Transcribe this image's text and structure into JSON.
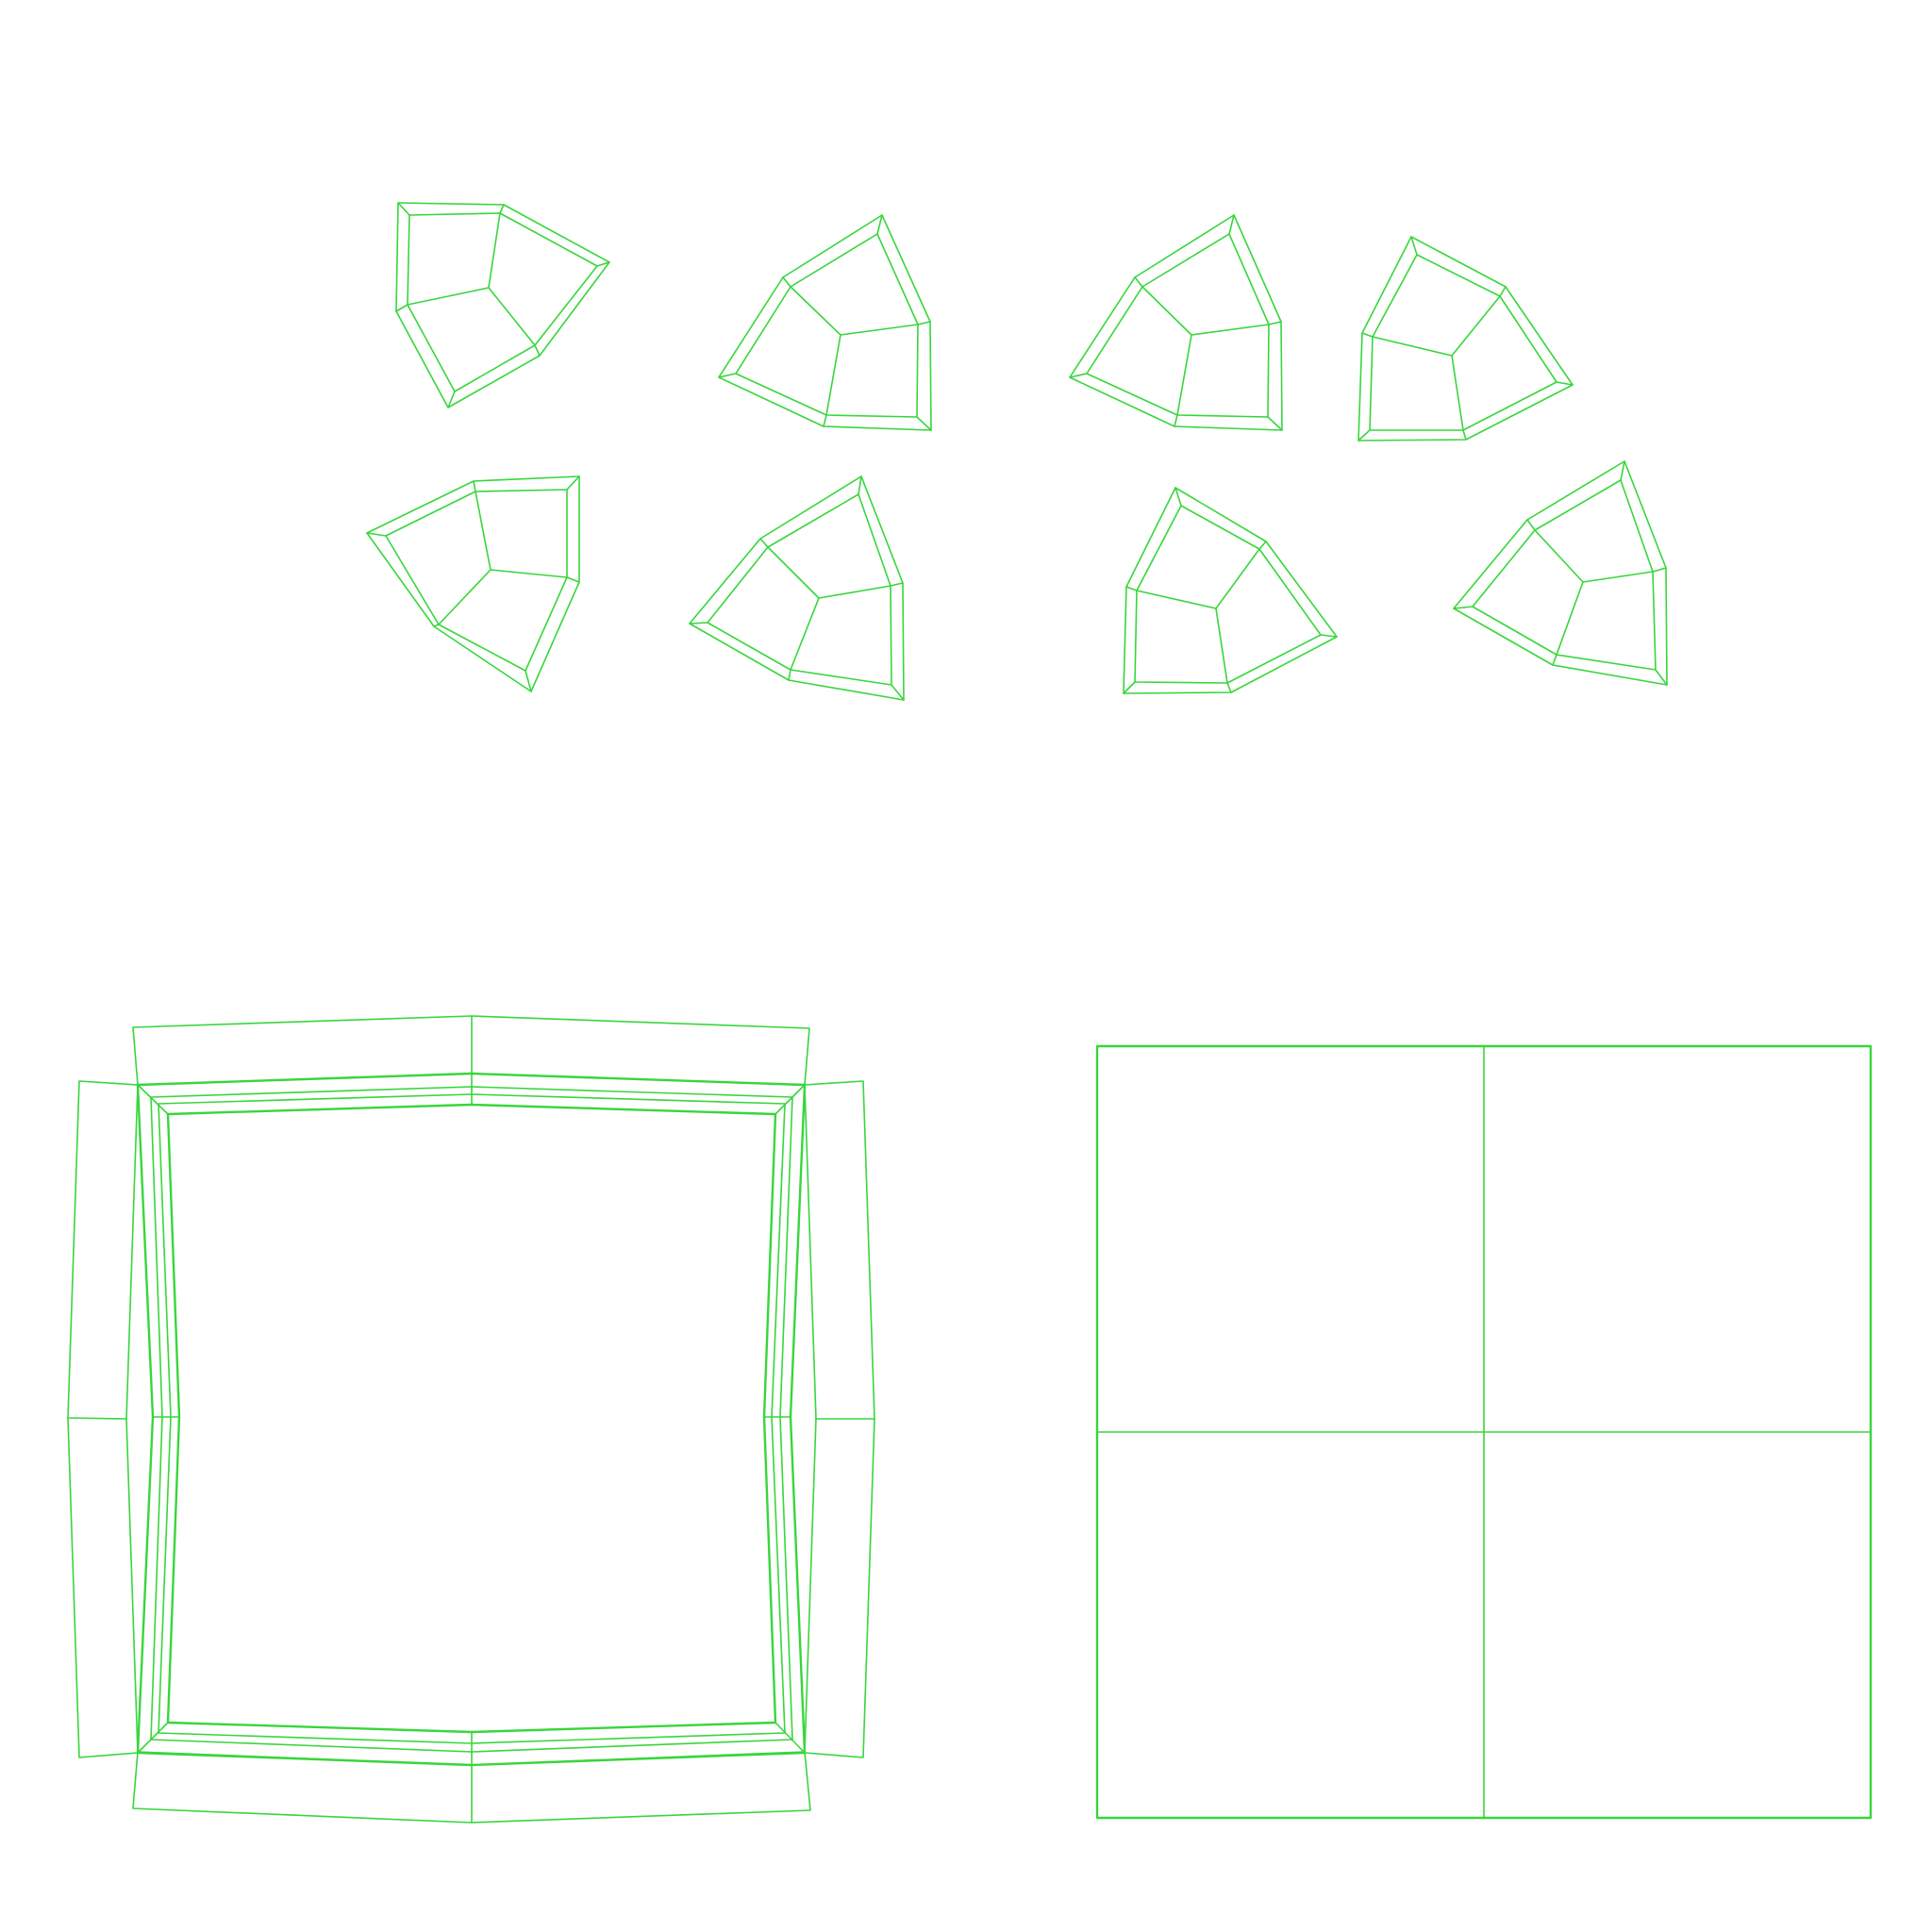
{
  "wire_color": "#38d63c",
  "background_color": "#ffffff",
  "groups": {
    "uv_islands_label": "",
    "frame_unwrap_label": "",
    "quad_plane_label": ""
  }
}
